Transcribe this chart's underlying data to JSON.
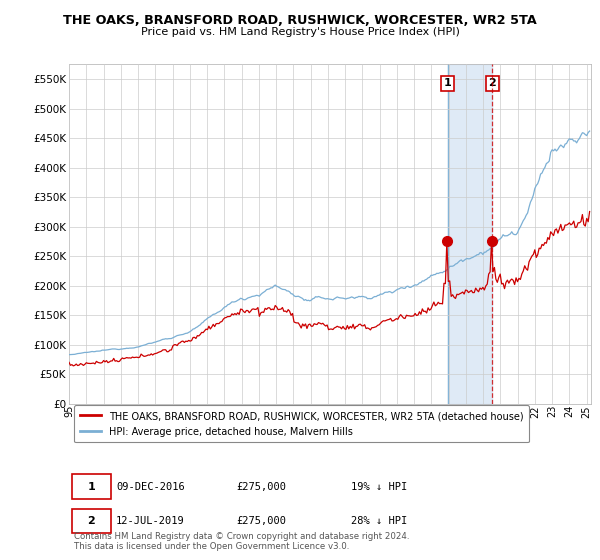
{
  "title": "THE OAKS, BRANSFORD ROAD, RUSHWICK, WORCESTER, WR2 5TA",
  "subtitle": "Price paid vs. HM Land Registry's House Price Index (HPI)",
  "hpi_color": "#7bafd4",
  "property_color": "#cc0000",
  "vline1_color": "#7bafd4",
  "vline2_color": "#cc0000",
  "shade_color": "#c5d9f0",
  "grid_color": "#cccccc",
  "bg_color": "#ffffff",
  "ylim": [
    0,
    575000
  ],
  "yticks": [
    0,
    50000,
    100000,
    150000,
    200000,
    250000,
    300000,
    350000,
    400000,
    450000,
    500000,
    550000
  ],
  "ytick_labels": [
    "£0",
    "£50K",
    "£100K",
    "£150K",
    "£200K",
    "£250K",
    "£300K",
    "£350K",
    "£400K",
    "£450K",
    "£500K",
    "£550K"
  ],
  "legend_property": "THE OAKS, BRANSFORD ROAD, RUSHWICK, WORCESTER, WR2 5TA (detached house)",
  "legend_hpi": "HPI: Average price, detached house, Malvern Hills",
  "annotation1_label": "1",
  "annotation1_date": "09-DEC-2016",
  "annotation1_price": "£275,000",
  "annotation1_hpi": "19% ↓ HPI",
  "annotation2_label": "2",
  "annotation2_date": "12-JUL-2019",
  "annotation2_price": "£275,000",
  "annotation2_hpi": "28% ↓ HPI",
  "footer": "Contains HM Land Registry data © Crown copyright and database right 2024.\nThis data is licensed under the Open Government Licence v3.0.",
  "sale1_year": 2016.938,
  "sale2_year": 2019.528,
  "sale1_price": 275000,
  "sale2_price": 275000
}
